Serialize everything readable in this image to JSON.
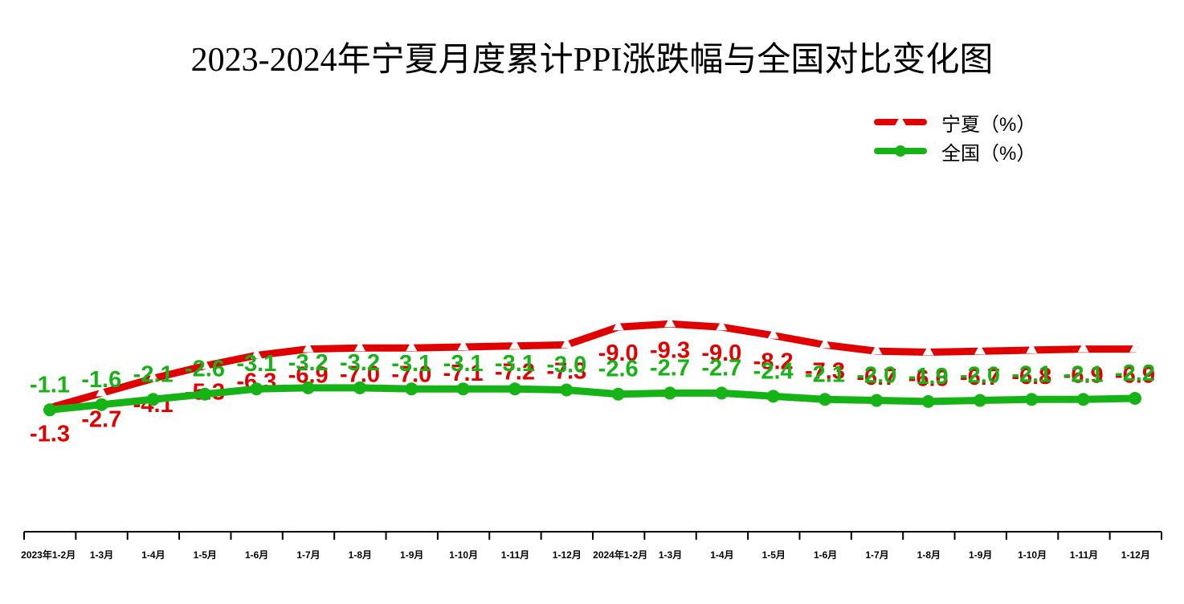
{
  "chart_data": {
    "type": "line",
    "title": "2023-2024年宁夏月度累计PPI涨跌幅与全国对比变化图",
    "categories": [
      "2023年1-2月",
      "1-3月",
      "1-4月",
      "1-5月",
      "1-6月",
      "1-7月",
      "1-8月",
      "1-9月",
      "1-10月",
      "1-11月",
      "1-12月",
      "2024年1-2月",
      "1-3月",
      "1-4月",
      "1-5月",
      "1-6月",
      "1-7月",
      "1-8月",
      "1-9月",
      "1-10月",
      "1-11月",
      "1-12月"
    ],
    "series": [
      {
        "name": "宁夏（%）",
        "color": "#e00000",
        "marker": "triangle",
        "values": [
          -1.3,
          -2.7,
          -4.1,
          -5.3,
          -6.3,
          -6.9,
          -7.0,
          -7.0,
          -7.1,
          -7.2,
          -7.3,
          -9.0,
          -9.3,
          -9.0,
          -8.2,
          -7.3,
          -6.7,
          -6.6,
          -6.7,
          -6.8,
          -6.9,
          -6.9
        ],
        "labels": [
          "-1.3",
          "-2.7",
          "-4.1",
          "-5.3",
          "-6.3",
          "-6.9",
          "-7.0",
          "-7.0",
          "-7.1",
          "-7.2",
          "-7.3",
          "-9.0",
          "-9.3",
          "-9.0",
          "-8.2",
          "-7.3",
          "-6.7",
          "-6.6",
          "-6.7",
          "-6.8",
          "-6.9",
          "-6.9"
        ]
      },
      {
        "name": "全国（%）",
        "color": "#16b316",
        "marker": "circle",
        "values": [
          -1.1,
          -1.6,
          -2.1,
          -2.6,
          -3.1,
          -3.2,
          -3.2,
          -3.1,
          -3.1,
          -3.1,
          -3.0,
          -2.6,
          -2.7,
          -2.7,
          -2.4,
          -2.1,
          -2.0,
          -1.9,
          -2.0,
          -2.1,
          -2.1,
          -2.2
        ],
        "labels": [
          "-1.1",
          "-1.6",
          "-2.1",
          "-2.6",
          "-3.1",
          "-3.2",
          "-3.2",
          "-3.1",
          "-3.1",
          "-3.1",
          "-3.0",
          "-2.6",
          "-2.7",
          "-2.7",
          "-2.4",
          "-2.1",
          "-2.0",
          "-1.9",
          "-2.0",
          "-2.1",
          "-2.1",
          "-2.2"
        ]
      }
    ],
    "legend": "top-right",
    "grid": false,
    "axis_color": "#000000"
  }
}
